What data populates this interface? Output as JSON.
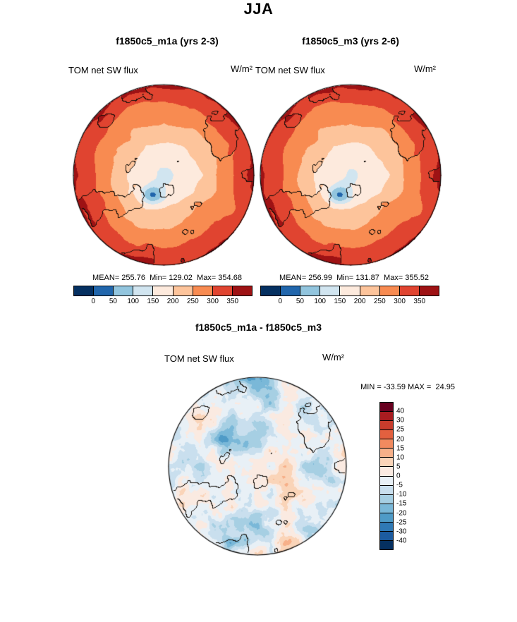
{
  "title": "JJA",
  "panels": [
    {
      "id": "m1a",
      "title": "f1850c5_m1a (yrs 2-3)",
      "var_label": "TOM net SW flux",
      "units": "W/m²",
      "stats_text": "MEAN= 255.76  Min= 129.02  Max= 354.68"
    },
    {
      "id": "m3",
      "title": "f1850c5_m3 (yrs 2-6)",
      "var_label": "TOM net SW flux",
      "units": "W/m²",
      "stats_text": "MEAN= 256.99  Min= 131.87  Max= 355.52"
    },
    {
      "id": "diff",
      "title": "f1850c5_m1a - f1850c5_m3",
      "var_label": "TOM net SW flux",
      "units": "W/m²",
      "stats_text": "MIN = -33.59 MAX =  24.95"
    }
  ],
  "chart_data": [
    {
      "type": "heatmap",
      "projection": "north-polar-stereographic",
      "season": "JJA",
      "title": "f1850c5_m1a (yrs 2-3)",
      "variable": "TOM net SW flux",
      "units": "W/m²",
      "stats": {
        "mean": 255.76,
        "min": 129.02,
        "max": 354.68
      },
      "levels": [
        0,
        50,
        100,
        150,
        200,
        250,
        300,
        350
      ],
      "colors": [
        "#053061",
        "#2166ac",
        "#92c5de",
        "#d1e5f0",
        "#fdeadd",
        "#fdc49b",
        "#f88b51",
        "#e04430",
        "#9e1214"
      ],
      "legend_position": "bottom"
    },
    {
      "type": "heatmap",
      "projection": "north-polar-stereographic",
      "season": "JJA",
      "title": "f1850c5_m3 (yrs 2-6)",
      "variable": "TOM net SW flux",
      "units": "W/m²",
      "stats": {
        "mean": 256.99,
        "min": 131.87,
        "max": 355.52
      },
      "levels": [
        0,
        50,
        100,
        150,
        200,
        250,
        300,
        350
      ],
      "colors": [
        "#053061",
        "#2166ac",
        "#92c5de",
        "#d1e5f0",
        "#fdeadd",
        "#fdc49b",
        "#f88b51",
        "#e04430",
        "#9e1214"
      ],
      "legend_position": "bottom"
    },
    {
      "type": "heatmap",
      "projection": "north-polar-stereographic",
      "season": "JJA",
      "title": "f1850c5_m1a - f1850c5_m3",
      "variable": "TOM net SW flux",
      "units": "W/m²",
      "stats": {
        "min": -33.59,
        "max": 24.95
      },
      "levels": [
        -40,
        -30,
        -25,
        -20,
        -15,
        -10,
        -5,
        0,
        5,
        10,
        15,
        20,
        25,
        30,
        40
      ],
      "colors": [
        "#053061",
        "#1c5ba0",
        "#2f79b5",
        "#4f9bc7",
        "#7ab8d8",
        "#a6cfe3",
        "#c9dfee",
        "#e8f0f6",
        "#faeae1",
        "#fad4b8",
        "#f7b089",
        "#f18a5f",
        "#e2603f",
        "#c83c2c",
        "#a81c20",
        "#67001f"
      ],
      "legend_position": "right"
    }
  ]
}
